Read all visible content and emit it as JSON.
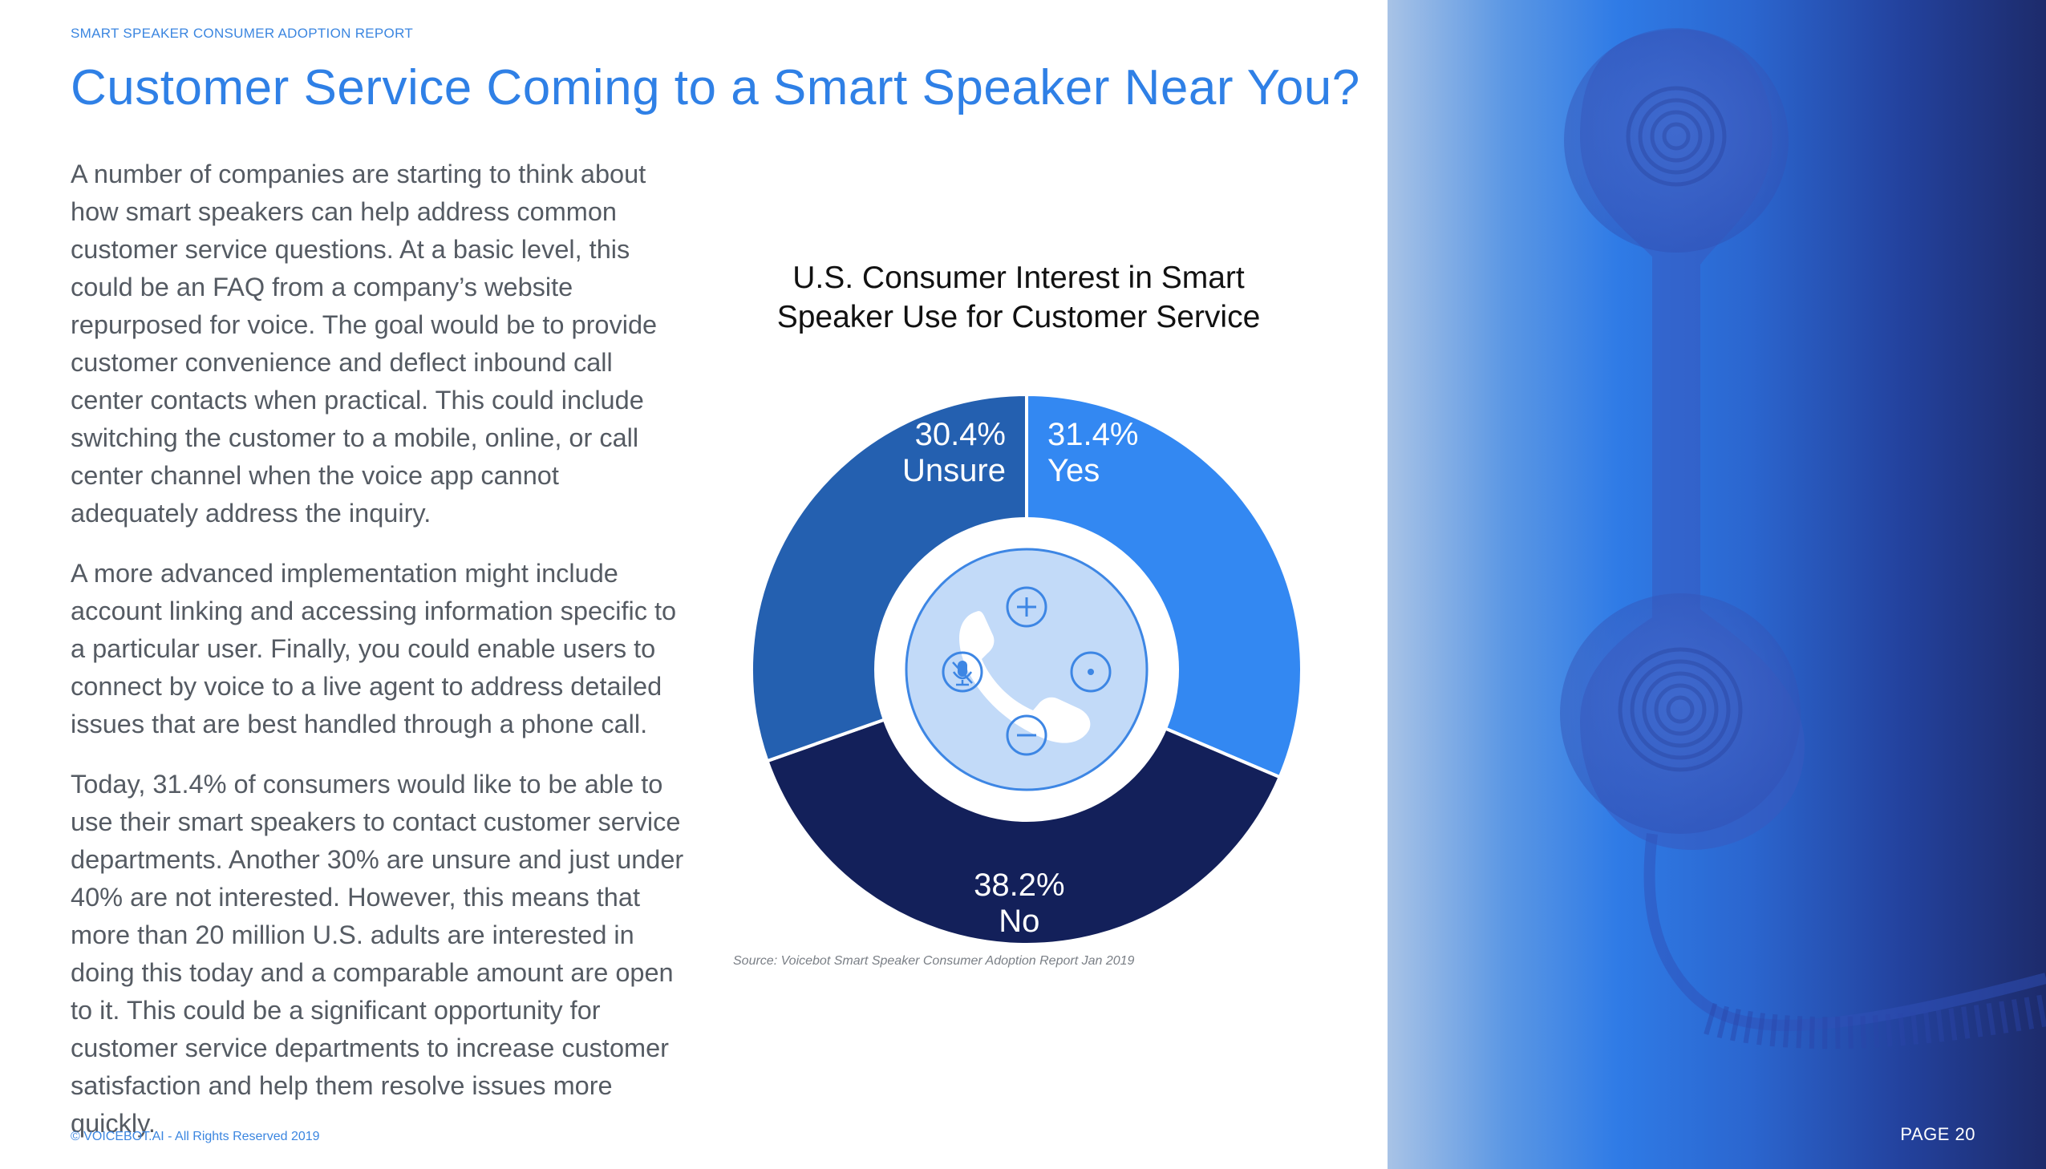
{
  "header": {
    "report_label": "SMART SPEAKER CONSUMER ADOPTION REPORT"
  },
  "page": {
    "title": "Customer Service Coming to a Smart Speaker Near You?",
    "page_number": "PAGE 20"
  },
  "body": {
    "paragraphs": [
      "A number of companies are starting to think about how smart speakers can help address common customer service questions. At a basic level, this could be an FAQ from a company’s website repurposed for voice. The goal would be to provide customer convenience and deflect inbound call center contacts when practical. This could include switching the customer to a mobile, online, or call center channel when the voice app cannot adequately address the inquiry.",
      "A more advanced implementation might include account linking and accessing information specific to a particular user. Finally, you could enable users to connect by voice to a live agent to address detailed issues that are best handled through a phone call.",
      "Today, 31.4% of consumers would like to be able to use their smart speakers to contact customer service departments. Another 30% are unsure and just under 40% are not interested. However, this means that more than 20 million U.S. adults are interested in doing this today and a comparable amount are open to it. This could be a significant opportunity for customer service departments to increase customer satisfaction and help them resolve issues more quickly."
    ]
  },
  "chart_data": {
    "type": "pie",
    "variant": "donut",
    "title_lines": [
      "U.S. Consumer Interest in Smart",
      "Speaker Use for Customer Service"
    ],
    "slices": [
      {
        "label": "Yes",
        "value": 31.4,
        "display": "31.4%",
        "color": "#3388f2"
      },
      {
        "label": "No",
        "value": 38.2,
        "display": "38.2%",
        "color": "#13205a"
      },
      {
        "label": "Unsure",
        "value": 30.4,
        "display": "30.4%",
        "color": "#2460b0"
      }
    ],
    "source": "Source: Voicebot Smart Speaker Consumer Adoption Report Jan 2019"
  },
  "center_icon": {
    "name": "smart-speaker-phone-icon",
    "controls": [
      "plus-icon",
      "minus-icon",
      "mic-icon",
      "dot-icon"
    ]
  },
  "side_image": {
    "name": "telephone-handset-image"
  },
  "footer": {
    "copyright": "© VOICEBOT.AI - All Rights Reserved 2019"
  }
}
